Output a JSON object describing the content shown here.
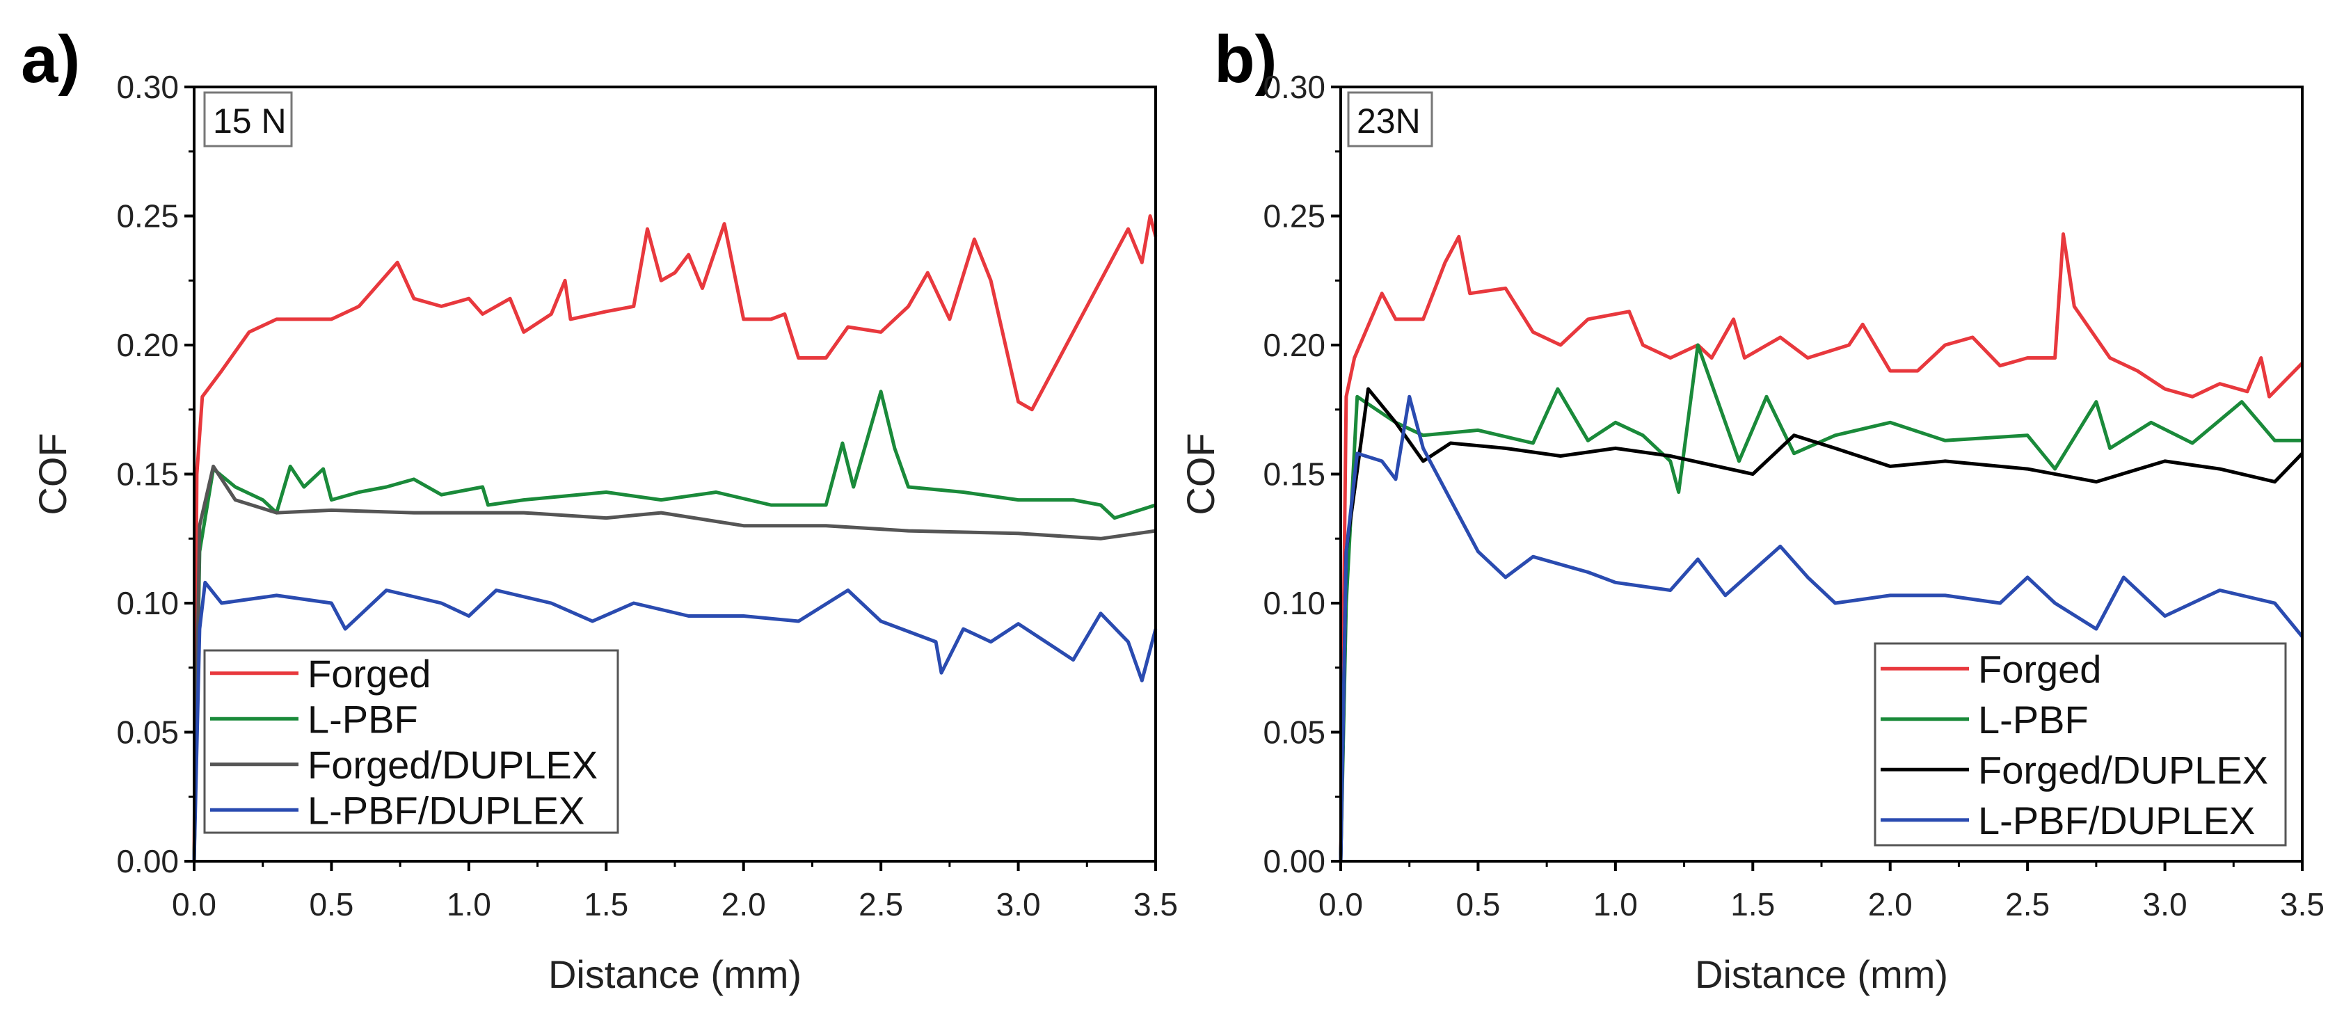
{
  "chart_data": [
    {
      "type": "line",
      "panel_label": "a)",
      "annotation": "15 N",
      "xlabel": "Distance (mm)",
      "ylabel": "COF",
      "xlim": [
        0,
        3.5
      ],
      "ylim": [
        0,
        0.3
      ],
      "xticks": [
        "0.0",
        "0.5",
        "1.0",
        "1.5",
        "2.0",
        "2.5",
        "3.0",
        "3.5"
      ],
      "yticks": [
        "0.00",
        "0.05",
        "0.10",
        "0.15",
        "0.20",
        "0.25",
        "0.30"
      ],
      "grid": false,
      "legend_position": "bottom-left",
      "series": [
        {
          "name": "Forged",
          "color": "#e8383d",
          "points": [
            [
              0,
              0
            ],
            [
              0.01,
              0.15
            ],
            [
              0.03,
              0.18
            ],
            [
              0.1,
              0.19
            ],
            [
              0.2,
              0.205
            ],
            [
              0.3,
              0.21
            ],
            [
              0.5,
              0.21
            ],
            [
              0.6,
              0.215
            ],
            [
              0.74,
              0.232
            ],
            [
              0.8,
              0.218
            ],
            [
              0.9,
              0.215
            ],
            [
              1.0,
              0.218
            ],
            [
              1.05,
              0.212
            ],
            [
              1.15,
              0.218
            ],
            [
              1.2,
              0.205
            ],
            [
              1.3,
              0.212
            ],
            [
              1.35,
              0.225
            ],
            [
              1.37,
              0.21
            ],
            [
              1.5,
              0.213
            ],
            [
              1.6,
              0.215
            ],
            [
              1.65,
              0.245
            ],
            [
              1.7,
              0.225
            ],
            [
              1.75,
              0.228
            ],
            [
              1.8,
              0.235
            ],
            [
              1.85,
              0.222
            ],
            [
              1.93,
              0.247
            ],
            [
              2.0,
              0.21
            ],
            [
              2.1,
              0.21
            ],
            [
              2.15,
              0.212
            ],
            [
              2.2,
              0.195
            ],
            [
              2.3,
              0.195
            ],
            [
              2.38,
              0.207
            ],
            [
              2.5,
              0.205
            ],
            [
              2.6,
              0.215
            ],
            [
              2.67,
              0.228
            ],
            [
              2.75,
              0.21
            ],
            [
              2.84,
              0.241
            ],
            [
              2.9,
              0.225
            ],
            [
              3.0,
              0.178
            ],
            [
              3.05,
              0.175
            ],
            [
              3.1,
              0.185
            ],
            [
              3.2,
              0.205
            ],
            [
              3.3,
              0.225
            ],
            [
              3.4,
              0.245
            ],
            [
              3.45,
              0.232
            ],
            [
              3.48,
              0.25
            ],
            [
              3.5,
              0.242
            ]
          ]
        },
        {
          "name": "L-PBF",
          "color": "#1a8a3a",
          "points": [
            [
              0,
              0
            ],
            [
              0.02,
              0.12
            ],
            [
              0.07,
              0.152
            ],
            [
              0.15,
              0.145
            ],
            [
              0.25,
              0.14
            ],
            [
              0.3,
              0.135
            ],
            [
              0.35,
              0.153
            ],
            [
              0.4,
              0.145
            ],
            [
              0.47,
              0.152
            ],
            [
              0.5,
              0.14
            ],
            [
              0.6,
              0.143
            ],
            [
              0.7,
              0.145
            ],
            [
              0.8,
              0.148
            ],
            [
              0.9,
              0.142
            ],
            [
              1.05,
              0.145
            ],
            [
              1.07,
              0.138
            ],
            [
              1.2,
              0.14
            ],
            [
              1.5,
              0.143
            ],
            [
              1.7,
              0.14
            ],
            [
              1.9,
              0.143
            ],
            [
              2.1,
              0.138
            ],
            [
              2.3,
              0.138
            ],
            [
              2.36,
              0.162
            ],
            [
              2.4,
              0.145
            ],
            [
              2.5,
              0.182
            ],
            [
              2.55,
              0.16
            ],
            [
              2.6,
              0.145
            ],
            [
              2.8,
              0.143
            ],
            [
              3.0,
              0.14
            ],
            [
              3.2,
              0.14
            ],
            [
              3.3,
              0.138
            ],
            [
              3.35,
              0.133
            ],
            [
              3.5,
              0.138
            ]
          ]
        },
        {
          "name": "Forged/DUPLEX",
          "color": "#555555",
          "points": [
            [
              0,
              0
            ],
            [
              0.02,
              0.13
            ],
            [
              0.07,
              0.153
            ],
            [
              0.15,
              0.14
            ],
            [
              0.3,
              0.135
            ],
            [
              0.5,
              0.136
            ],
            [
              0.8,
              0.135
            ],
            [
              1.0,
              0.135
            ],
            [
              1.2,
              0.135
            ],
            [
              1.5,
              0.133
            ],
            [
              1.7,
              0.135
            ],
            [
              2.0,
              0.13
            ],
            [
              2.3,
              0.13
            ],
            [
              2.6,
              0.128
            ],
            [
              3.0,
              0.127
            ],
            [
              3.3,
              0.125
            ],
            [
              3.5,
              0.128
            ]
          ]
        },
        {
          "name": "L-PBF/DUPLEX",
          "color": "#2a4bb0",
          "points": [
            [
              0,
              0
            ],
            [
              0.02,
              0.09
            ],
            [
              0.04,
              0.108
            ],
            [
              0.1,
              0.1
            ],
            [
              0.3,
              0.103
            ],
            [
              0.5,
              0.1
            ],
            [
              0.55,
              0.09
            ],
            [
              0.7,
              0.105
            ],
            [
              0.9,
              0.1
            ],
            [
              1.0,
              0.095
            ],
            [
              1.1,
              0.105
            ],
            [
              1.3,
              0.1
            ],
            [
              1.45,
              0.093
            ],
            [
              1.6,
              0.1
            ],
            [
              1.8,
              0.095
            ],
            [
              2.0,
              0.095
            ],
            [
              2.2,
              0.093
            ],
            [
              2.38,
              0.105
            ],
            [
              2.5,
              0.093
            ],
            [
              2.7,
              0.085
            ],
            [
              2.72,
              0.073
            ],
            [
              2.8,
              0.09
            ],
            [
              2.9,
              0.085
            ],
            [
              3.0,
              0.092
            ],
            [
              3.1,
              0.085
            ],
            [
              3.2,
              0.078
            ],
            [
              3.3,
              0.096
            ],
            [
              3.4,
              0.085
            ],
            [
              3.45,
              0.07
            ],
            [
              3.5,
              0.09
            ]
          ]
        }
      ]
    },
    {
      "type": "line",
      "panel_label": "b)",
      "annotation": "23N",
      "xlabel": "Distance (mm)",
      "ylabel": "COF",
      "xlim": [
        0,
        3.5
      ],
      "ylim": [
        0,
        0.3
      ],
      "xticks": [
        "0.0",
        "0.5",
        "1.0",
        "1.5",
        "2.0",
        "2.5",
        "3.0",
        "3.5"
      ],
      "yticks": [
        "0.00",
        "0.05",
        "0.10",
        "0.15",
        "0.20",
        "0.25",
        "0.30"
      ],
      "grid": false,
      "legend_position": "bottom-right",
      "series": [
        {
          "name": "Forged",
          "color": "#e8383d",
          "points": [
            [
              0,
              0
            ],
            [
              0.02,
              0.18
            ],
            [
              0.05,
              0.195
            ],
            [
              0.15,
              0.22
            ],
            [
              0.2,
              0.21
            ],
            [
              0.3,
              0.21
            ],
            [
              0.38,
              0.232
            ],
            [
              0.43,
              0.242
            ],
            [
              0.47,
              0.22
            ],
            [
              0.6,
              0.222
            ],
            [
              0.7,
              0.205
            ],
            [
              0.8,
              0.2
            ],
            [
              0.9,
              0.21
            ],
            [
              1.05,
              0.213
            ],
            [
              1.1,
              0.2
            ],
            [
              1.2,
              0.195
            ],
            [
              1.3,
              0.2
            ],
            [
              1.35,
              0.195
            ],
            [
              1.43,
              0.21
            ],
            [
              1.47,
              0.195
            ],
            [
              1.6,
              0.203
            ],
            [
              1.7,
              0.195
            ],
            [
              1.85,
              0.2
            ],
            [
              1.9,
              0.208
            ],
            [
              2.0,
              0.19
            ],
            [
              2.1,
              0.19
            ],
            [
              2.2,
              0.2
            ],
            [
              2.3,
              0.203
            ],
            [
              2.4,
              0.192
            ],
            [
              2.5,
              0.195
            ],
            [
              2.6,
              0.195
            ],
            [
              2.63,
              0.243
            ],
            [
              2.67,
              0.215
            ],
            [
              2.8,
              0.195
            ],
            [
              2.9,
              0.19
            ],
            [
              3.0,
              0.183
            ],
            [
              3.1,
              0.18
            ],
            [
              3.2,
              0.185
            ],
            [
              3.3,
              0.182
            ],
            [
              3.35,
              0.195
            ],
            [
              3.38,
              0.18
            ],
            [
              3.5,
              0.193
            ]
          ]
        },
        {
          "name": "L-PBF",
          "color": "#1a8a3a",
          "points": [
            [
              0,
              0
            ],
            [
              0.02,
              0.1
            ],
            [
              0.06,
              0.18
            ],
            [
              0.2,
              0.17
            ],
            [
              0.3,
              0.165
            ],
            [
              0.5,
              0.167
            ],
            [
              0.7,
              0.162
            ],
            [
              0.79,
              0.183
            ],
            [
              0.9,
              0.163
            ],
            [
              1.0,
              0.17
            ],
            [
              1.1,
              0.165
            ],
            [
              1.2,
              0.155
            ],
            [
              1.23,
              0.143
            ],
            [
              1.3,
              0.2
            ],
            [
              1.4,
              0.17
            ],
            [
              1.45,
              0.155
            ],
            [
              1.55,
              0.18
            ],
            [
              1.65,
              0.158
            ],
            [
              1.8,
              0.165
            ],
            [
              2.0,
              0.17
            ],
            [
              2.2,
              0.163
            ],
            [
              2.5,
              0.165
            ],
            [
              2.6,
              0.152
            ],
            [
              2.75,
              0.178
            ],
            [
              2.8,
              0.16
            ],
            [
              2.95,
              0.17
            ],
            [
              3.1,
              0.162
            ],
            [
              3.28,
              0.178
            ],
            [
              3.4,
              0.163
            ],
            [
              3.5,
              0.163
            ]
          ]
        },
        {
          "name": "Forged/DUPLEX",
          "color": "#000000",
          "points": [
            [
              0,
              0
            ],
            [
              0.02,
              0.12
            ],
            [
              0.1,
              0.183
            ],
            [
              0.2,
              0.17
            ],
            [
              0.3,
              0.155
            ],
            [
              0.4,
              0.162
            ],
            [
              0.6,
              0.16
            ],
            [
              0.8,
              0.157
            ],
            [
              1.0,
              0.16
            ],
            [
              1.2,
              0.157
            ],
            [
              1.5,
              0.15
            ],
            [
              1.65,
              0.165
            ],
            [
              1.8,
              0.16
            ],
            [
              2.0,
              0.153
            ],
            [
              2.2,
              0.155
            ],
            [
              2.5,
              0.152
            ],
            [
              2.75,
              0.147
            ],
            [
              3.0,
              0.155
            ],
            [
              3.2,
              0.152
            ],
            [
              3.4,
              0.147
            ],
            [
              3.5,
              0.158
            ]
          ]
        },
        {
          "name": "L-PBF/DUPLEX",
          "color": "#2a4bb0",
          "points": [
            [
              0,
              0
            ],
            [
              0.02,
              0.12
            ],
            [
              0.06,
              0.158
            ],
            [
              0.15,
              0.155
            ],
            [
              0.2,
              0.148
            ],
            [
              0.25,
              0.18
            ],
            [
              0.3,
              0.16
            ],
            [
              0.4,
              0.14
            ],
            [
              0.5,
              0.12
            ],
            [
              0.6,
              0.11
            ],
            [
              0.7,
              0.118
            ],
            [
              0.9,
              0.112
            ],
            [
              1.0,
              0.108
            ],
            [
              1.2,
              0.105
            ],
            [
              1.3,
              0.117
            ],
            [
              1.4,
              0.103
            ],
            [
              1.6,
              0.122
            ],
            [
              1.7,
              0.11
            ],
            [
              1.8,
              0.1
            ],
            [
              2.0,
              0.103
            ],
            [
              2.2,
              0.103
            ],
            [
              2.4,
              0.1
            ],
            [
              2.5,
              0.11
            ],
            [
              2.6,
              0.1
            ],
            [
              2.75,
              0.09
            ],
            [
              2.85,
              0.11
            ],
            [
              3.0,
              0.095
            ],
            [
              3.2,
              0.105
            ],
            [
              3.4,
              0.1
            ],
            [
              3.5,
              0.087
            ]
          ]
        }
      ]
    }
  ]
}
